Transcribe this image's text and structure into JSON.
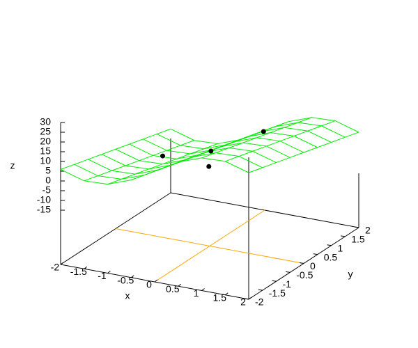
{
  "chart_data": {
    "type": "surface3d",
    "x_label": "x",
    "y_label": "y",
    "z_label": "z",
    "xlim": [
      -2,
      2
    ],
    "ylim": [
      -2,
      2
    ],
    "zlim": [
      -15,
      30
    ],
    "xticks": [
      -2,
      -1.5,
      -1,
      -0.5,
      0,
      0.5,
      1,
      1.5,
      2
    ],
    "yticks": [
      -2,
      -1.5,
      -1,
      -0.5,
      0,
      0.5,
      1,
      1.5,
      2
    ],
    "zticks": [
      -15,
      -10,
      -5,
      0,
      5,
      10,
      15,
      20,
      25,
      30
    ],
    "x": [
      -2,
      -1.5,
      -1,
      -0.5,
      0,
      0.5,
      1,
      1.5,
      2
    ],
    "y": [
      -2,
      -1.5,
      -1,
      -0.5,
      0,
      0.5,
      1,
      1.5,
      2
    ],
    "z": [
      [
        5.9,
        2.3,
        2.8,
        7.2,
        14,
        20.8,
        25.2,
        25.7,
        22.1
      ],
      [
        3.9,
        0.3,
        0.8,
        5.2,
        12,
        18.8,
        23.2,
        23.7,
        20.1
      ],
      [
        1.9,
        -1.7,
        -1.2,
        3.2,
        10,
        16.8,
        21.2,
        21.7,
        18.1
      ],
      [
        -0.1,
        -3.7,
        -3.2,
        1.2,
        8,
        14.8,
        19.2,
        19.7,
        16.1
      ],
      [
        -2.1,
        -5.7,
        -5.2,
        -0.8,
        6,
        12.8,
        17.2,
        17.7,
        14.1
      ],
      [
        -4.1,
        -7.7,
        -7.2,
        -2.8,
        4,
        10.8,
        15.2,
        15.7,
        12.1
      ],
      [
        -6.1,
        -9.7,
        -9.2,
        -4.8,
        2,
        8.8,
        13.2,
        13.7,
        10.1
      ],
      [
        -8.1,
        -11.7,
        -11.2,
        -6.8,
        0,
        6.8,
        11.2,
        11.7,
        8.1
      ],
      [
        -10.1,
        -13.7,
        -13.2,
        -8.8,
        -2,
        4.8,
        9.2,
        9.7,
        6.1
      ]
    ],
    "surface_color": "#00ee00",
    "zeroaxis_color": "#ffa500",
    "points": {
      "x": [
        0.56,
        -1.0,
        0.32,
        0.86
      ],
      "y": [
        1,
        0,
        -0.5,
        -1.5
      ],
      "z": [
        9.2,
        -1.1,
        11.9,
        15.6
      ],
      "color": "#000000"
    }
  }
}
